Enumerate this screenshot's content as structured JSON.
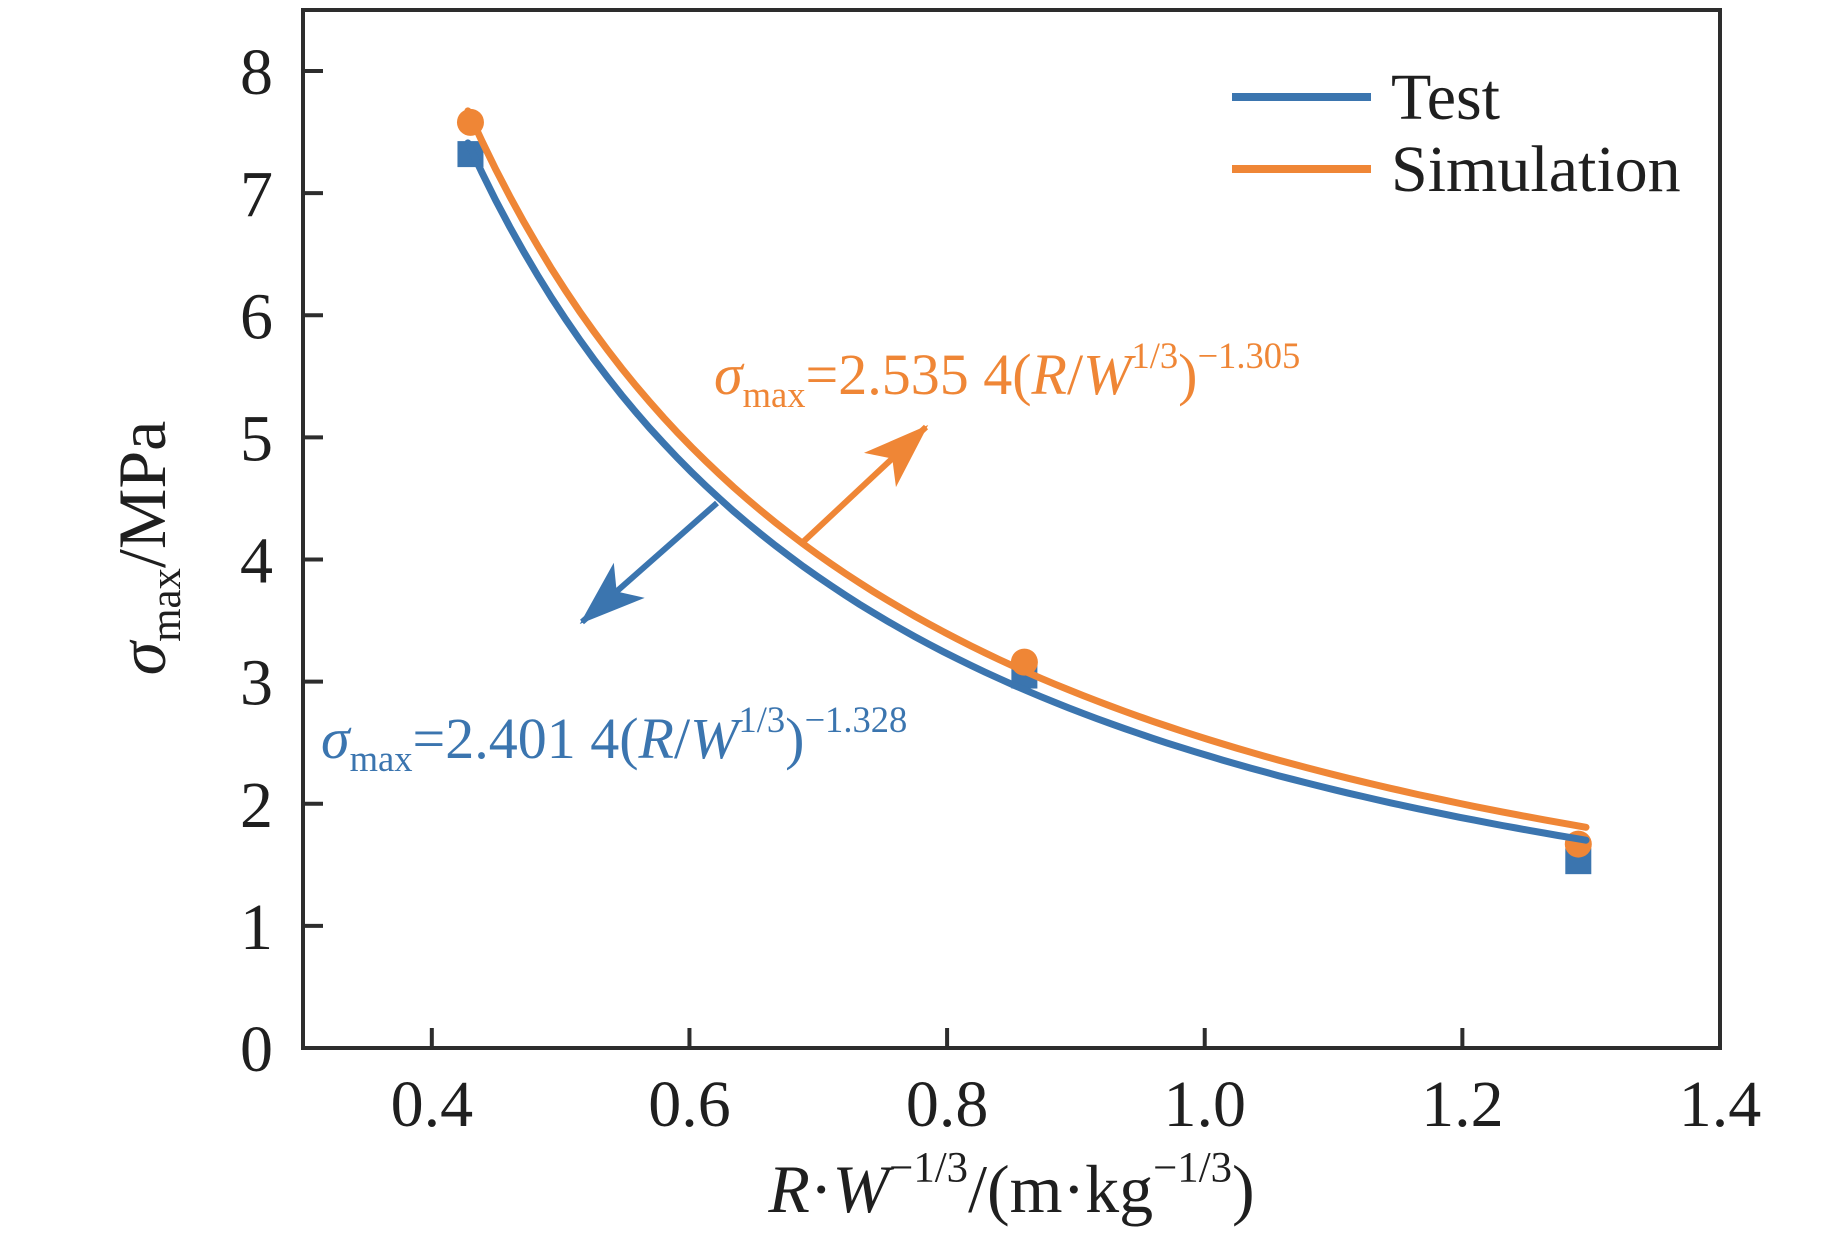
{
  "figure": {
    "background": "#ffffff",
    "text_color": "#1f1f1f",
    "axis_color": "#2d2d2d"
  },
  "chart_data": {
    "type": "line",
    "title": "",
    "xlabel": "R·W^(-1/3)/(m·kg^(-1/3))",
    "ylabel": "σ_max/MPa",
    "xlabel_parts": [
      {
        "t": "R",
        "i": true
      },
      {
        "t": "·"
      },
      {
        "t": "W",
        "i": true
      },
      {
        "t": "−1/3",
        "sup": true
      },
      {
        "t": "/(m·kg"
      },
      {
        "t": "−1/3",
        "sup": true
      },
      {
        "t": ")"
      }
    ],
    "ylabel_parts": [
      {
        "t": "σ",
        "i": true
      },
      {
        "t": "max",
        "sub": true
      },
      {
        "t": "/MPa"
      }
    ],
    "xlim": [
      0.3,
      1.4
    ],
    "ylim": [
      0,
      8.5
    ],
    "grid": false,
    "xticks": [
      {
        "v": 0.4,
        "label": "0.4"
      },
      {
        "v": 0.6,
        "label": "0.6"
      },
      {
        "v": 0.8,
        "label": "0.8"
      },
      {
        "v": 1.0,
        "label": "1.0"
      },
      {
        "v": 1.2,
        "label": "1.2"
      },
      {
        "v": 1.4,
        "label": "1.4"
      }
    ],
    "yticks": [
      {
        "v": 0,
        "label": "0"
      },
      {
        "v": 1,
        "label": "1"
      },
      {
        "v": 2,
        "label": "2"
      },
      {
        "v": 3,
        "label": "3"
      },
      {
        "v": 4,
        "label": "4"
      },
      {
        "v": 5,
        "label": "5"
      },
      {
        "v": 6,
        "label": "6"
      },
      {
        "v": 7,
        "label": "7"
      },
      {
        "v": 8,
        "label": "8"
      }
    ],
    "legend": {
      "position": "top-right",
      "entries": [
        {
          "name": "Test",
          "color": "#3B75AF"
        },
        {
          "name": "Simulation",
          "color": "#EF8636"
        }
      ]
    },
    "curve_x_range": [
      0.428,
      1.296
    ],
    "series": [
      {
        "name": "Test",
        "color": "#3B75AF",
        "marker": "square",
        "points": [
          {
            "x": 0.43,
            "y": 7.32
          },
          {
            "x": 0.86,
            "y": 3.05
          },
          {
            "x": 1.29,
            "y": 1.53
          }
        ],
        "fit": {
          "coefficient": 2.4014,
          "exponent": -1.328,
          "equation_text": "σ_max=2.401 4(R/W^1/3)^−1.328",
          "equation_parts": [
            {
              "t": "σ",
              "i": true
            },
            {
              "t": "max",
              "sub": true
            },
            {
              "t": "=2.401 4("
            },
            {
              "t": "R",
              "i": true
            },
            {
              "t": "/"
            },
            {
              "t": "W",
              "i": true
            },
            {
              "t": "1/3",
              "sup": true
            },
            {
              "t": ")"
            },
            {
              "t": "−1.328",
              "sup": true
            }
          ]
        }
      },
      {
        "name": "Simulation",
        "color": "#EF8636",
        "marker": "circle",
        "points": [
          {
            "x": 0.43,
            "y": 7.58
          },
          {
            "x": 0.86,
            "y": 3.16
          },
          {
            "x": 1.29,
            "y": 1.67
          }
        ],
        "fit": {
          "coefficient": 2.5354,
          "exponent": -1.305,
          "equation_text": "σ_max=2.535 4(R/W^1/3)^−1.305",
          "equation_parts": [
            {
              "t": "σ",
              "i": true
            },
            {
              "t": "max",
              "sub": true
            },
            {
              "t": "=2.535 4("
            },
            {
              "t": "R",
              "i": true
            },
            {
              "t": "/"
            },
            {
              "t": "W",
              "i": true
            },
            {
              "t": "1/3",
              "sup": true
            },
            {
              "t": ")"
            },
            {
              "t": "−1.305",
              "sup": true
            }
          ]
        }
      }
    ]
  }
}
